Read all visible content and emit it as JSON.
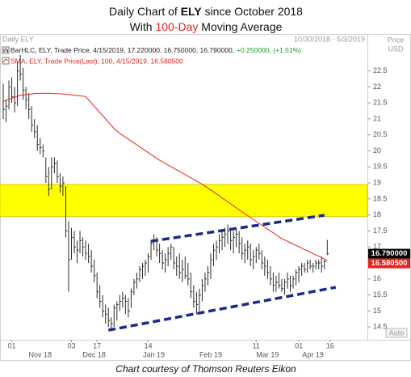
{
  "chart_data": {
    "type": "hlc",
    "title": [
      "Daily Chart of ",
      "ELY",
      " since October 2018"
    ],
    "subtitle": [
      "With ",
      "100-Day",
      " Moving Average"
    ],
    "header": "Daily ELY",
    "date_range": "10/30/2018 - 5/3/2019",
    "axis_label": [
      "Price",
      "USD"
    ],
    "caption": "Chart courtesy of Thomson Reuters Eikon",
    "auto_label": "Auto",
    "x": [
      "2018-10-29",
      "2018-10-30",
      "2018-10-31",
      "2018-11-01",
      "2018-11-02",
      "2018-11-05",
      "2018-11-06",
      "2018-11-07",
      "2018-11-08",
      "2018-11-09",
      "2018-11-12",
      "2018-11-13",
      "2018-11-14",
      "2018-11-15",
      "2018-11-16",
      "2018-11-19",
      "2018-11-20",
      "2018-11-21",
      "2018-11-23",
      "2018-11-26",
      "2018-11-27",
      "2018-11-28",
      "2018-11-29",
      "2018-11-30",
      "2018-12-03",
      "2018-12-04",
      "2018-12-06",
      "2018-12-07",
      "2018-12-10",
      "2018-12-11",
      "2018-12-12",
      "2018-12-13",
      "2018-12-14",
      "2018-12-17",
      "2018-12-18",
      "2018-12-19",
      "2018-12-20",
      "2018-12-21",
      "2018-12-24",
      "2018-12-26",
      "2018-12-27",
      "2018-12-28",
      "2018-12-31",
      "2019-01-02",
      "2019-01-03",
      "2019-01-04",
      "2019-01-07",
      "2019-01-08",
      "2019-01-09",
      "2019-01-10",
      "2019-01-11",
      "2019-01-14",
      "2019-01-15",
      "2019-01-16",
      "2019-01-17",
      "2019-01-18",
      "2019-01-22",
      "2019-01-23",
      "2019-01-24",
      "2019-01-25",
      "2019-01-28",
      "2019-01-29",
      "2019-01-30",
      "2019-01-31",
      "2019-02-01",
      "2019-02-04",
      "2019-02-05",
      "2019-02-06",
      "2019-02-07",
      "2019-02-08",
      "2019-02-11",
      "2019-02-12",
      "2019-02-13",
      "2019-02-14",
      "2019-02-15",
      "2019-02-19",
      "2019-02-20",
      "2019-02-21",
      "2019-02-22",
      "2019-02-25",
      "2019-02-26",
      "2019-02-27",
      "2019-02-28",
      "2019-03-01",
      "2019-03-04",
      "2019-03-05",
      "2019-03-06",
      "2019-03-07",
      "2019-03-08",
      "2019-03-11",
      "2019-03-12",
      "2019-03-13",
      "2019-03-14",
      "2019-03-15",
      "2019-03-18",
      "2019-03-19",
      "2019-03-20",
      "2019-03-21",
      "2019-03-22",
      "2019-03-25",
      "2019-03-26",
      "2019-03-27",
      "2019-03-28",
      "2019-03-29",
      "2019-04-01",
      "2019-04-02",
      "2019-04-03",
      "2019-04-04",
      "2019-04-05",
      "2019-04-08",
      "2019-04-09",
      "2019-04-10",
      "2019-04-11",
      "2019-04-12",
      "2019-04-15"
    ],
    "series": [
      {
        "name": "BarHLC, ELY, Trade Price, 4/15/2019, 17.220000, 16.750000, 16.790000,",
        "change": "+0.250000, (+1.51%)",
        "change_color": "#1f9a2a",
        "type": "hlc",
        "color": "#2a2a2a",
        "high": [
          22.1,
          21.6,
          22.2,
          22.3,
          22.0,
          22.8,
          23.0,
          22.6,
          22.0,
          21.8,
          21.4,
          21.0,
          20.8,
          20.4,
          20.2,
          19.8,
          19.5,
          19.8,
          19.8,
          19.7,
          19.3,
          19.2,
          18.9,
          17.8,
          17.6,
          17.5,
          17.2,
          17.5,
          17.3,
          17.2,
          17.1,
          16.9,
          16.6,
          16.2,
          15.8,
          15.5,
          15.2,
          15.1,
          14.8,
          15.2,
          15.3,
          15.5,
          15.6,
          15.5,
          15.4,
          15.7,
          16.0,
          16.2,
          16.4,
          16.5,
          16.6,
          16.8,
          17.2,
          17.4,
          17.3,
          17.1,
          16.9,
          16.8,
          17.0,
          17.1,
          17.0,
          16.7,
          16.8,
          16.6,
          16.7,
          16.5,
          16.2,
          15.8,
          15.6,
          15.7,
          16.0,
          16.2,
          16.4,
          16.8,
          17.1,
          17.2,
          17.4,
          17.5,
          17.6,
          17.7,
          17.6,
          17.5,
          17.6,
          17.5,
          17.3,
          17.1,
          17.2,
          17.1,
          16.9,
          17.0,
          17.1,
          16.9,
          16.7,
          16.6,
          16.4,
          16.2,
          16.1,
          16.2,
          16.0,
          16.0,
          16.2,
          16.1,
          16.1,
          16.3,
          16.4,
          16.5,
          16.5,
          16.6,
          16.6,
          16.5,
          16.6,
          16.6,
          16.7,
          16.6,
          17.22
        ],
        "low": [
          21.0,
          20.9,
          21.3,
          21.5,
          21.2,
          21.4,
          22.2,
          21.6,
          21.3,
          21.0,
          20.6,
          20.4,
          20.0,
          19.9,
          19.8,
          19.0,
          18.6,
          18.8,
          19.3,
          19.0,
          18.7,
          18.6,
          17.3,
          15.6,
          16.6,
          16.8,
          16.5,
          16.8,
          16.7,
          16.6,
          16.5,
          16.2,
          15.9,
          15.4,
          15.1,
          14.8,
          14.6,
          14.5,
          14.4,
          14.5,
          14.7,
          15.0,
          15.1,
          14.9,
          14.8,
          15.1,
          15.5,
          15.7,
          15.9,
          16.0,
          16.1,
          16.2,
          16.6,
          16.9,
          16.7,
          16.5,
          16.3,
          16.2,
          16.4,
          16.6,
          16.3,
          16.1,
          16.0,
          15.9,
          16.0,
          15.8,
          15.4,
          15.1,
          14.9,
          15.0,
          15.3,
          15.6,
          15.8,
          16.0,
          16.4,
          16.6,
          16.8,
          16.9,
          17.0,
          17.1,
          16.9,
          16.8,
          17.0,
          16.8,
          16.6,
          16.5,
          16.6,
          16.4,
          16.3,
          16.5,
          16.6,
          16.3,
          16.1,
          16.0,
          15.8,
          15.6,
          15.6,
          15.7,
          15.6,
          15.5,
          15.7,
          15.6,
          15.7,
          15.8,
          15.9,
          16.1,
          16.2,
          16.2,
          16.3,
          16.2,
          16.3,
          16.3,
          16.2,
          16.3,
          16.75
        ],
        "values": [
          21.3,
          21.4,
          22.0,
          21.7,
          21.5,
          22.5,
          22.4,
          21.9,
          21.6,
          21.3,
          20.8,
          20.6,
          20.2,
          20.1,
          20.0,
          19.2,
          18.8,
          19.5,
          19.6,
          19.2,
          18.9,
          19.0,
          17.5,
          16.6,
          17.3,
          17.0,
          16.9,
          17.2,
          17.0,
          16.8,
          16.7,
          16.4,
          16.1,
          15.6,
          15.3,
          15.0,
          14.9,
          14.7,
          14.6,
          15.1,
          15.2,
          15.3,
          15.4,
          15.3,
          15.0,
          15.6,
          15.9,
          16.0,
          16.3,
          16.4,
          16.5,
          16.7,
          17.1,
          17.2,
          16.9,
          16.8,
          16.5,
          16.6,
          16.8,
          17.0,
          16.5,
          16.4,
          16.2,
          16.3,
          16.1,
          16.0,
          15.6,
          15.3,
          15.2,
          15.5,
          15.8,
          16.0,
          16.2,
          16.6,
          16.9,
          17.0,
          17.2,
          17.3,
          17.4,
          17.5,
          17.2,
          17.3,
          17.4,
          17.1,
          16.8,
          16.9,
          17.0,
          16.6,
          16.7,
          16.9,
          16.8,
          16.5,
          16.4,
          16.2,
          16.0,
          15.8,
          15.9,
          15.8,
          15.7,
          15.9,
          16.0,
          15.8,
          16.0,
          16.2,
          16.3,
          16.4,
          16.3,
          16.5,
          16.4,
          16.4,
          16.5,
          16.5,
          16.4,
          16.54,
          16.79
        ]
      },
      {
        "name": "SMA, ELY, Trade Price(Last), 100, 4/15/2019, 16.580500",
        "type": "line",
        "color": "#e8231b",
        "values": [
          21.55,
          21.58,
          21.62,
          21.65,
          21.68,
          21.71,
          21.74,
          21.75,
          21.76,
          21.77,
          21.78,
          21.79,
          21.8,
          21.8,
          21.8,
          21.8,
          21.8,
          21.8,
          21.79,
          21.79,
          21.78,
          21.78,
          21.77,
          21.76,
          21.75,
          21.74,
          21.73,
          21.72,
          21.71,
          21.7,
          21.6,
          21.5,
          21.4,
          21.3,
          21.2,
          21.1,
          21.0,
          20.9,
          20.8,
          20.7,
          20.62,
          20.55,
          20.49,
          20.43,
          20.37,
          20.31,
          20.25,
          20.19,
          20.13,
          20.07,
          20.01,
          19.95,
          19.89,
          19.83,
          19.77,
          19.71,
          19.66,
          19.61,
          19.56,
          19.51,
          19.46,
          19.41,
          19.36,
          19.31,
          19.26,
          19.21,
          19.16,
          19.11,
          19.06,
          19.01,
          18.96,
          18.9,
          18.84,
          18.78,
          18.72,
          18.66,
          18.6,
          18.53,
          18.47,
          18.41,
          18.35,
          18.29,
          18.22,
          18.16,
          18.1,
          18.04,
          17.98,
          17.92,
          17.86,
          17.8,
          17.74,
          17.68,
          17.62,
          17.56,
          17.5,
          17.44,
          17.38,
          17.32,
          17.26,
          17.22,
          17.18,
          17.13,
          17.09,
          17.05,
          17.01,
          16.96,
          16.92,
          16.88,
          16.84,
          16.79,
          16.75,
          16.71,
          16.67,
          16.62,
          16.5805
        ]
      }
    ],
    "ylim": [
      14.1,
      23.3
    ],
    "yticks": [
      14.5,
      15,
      15.5,
      16,
      16.5,
      17,
      17.5,
      18,
      18.5,
      19,
      19.5,
      20,
      20.5,
      21,
      21.5,
      22,
      22.5
    ],
    "xticks": [
      {
        "value": "2018-11-01",
        "label": "01"
      },
      {
        "value": "2018-12-03",
        "label": "03"
      },
      {
        "value": "2018-12-17",
        "label": "17"
      },
      {
        "value": "2019-01-14",
        "label": "14"
      },
      {
        "value": "2019-03-11",
        "label": "11"
      },
      {
        "value": "2019-04-01",
        "label": "01"
      },
      {
        "value": "2019-04-16",
        "label": "16"
      }
    ],
    "xmonths": [
      {
        "value": "2018-11-15",
        "label": "Nov 18"
      },
      {
        "value": "2018-12-14",
        "label": "Dec 18"
      },
      {
        "value": "2019-01-16",
        "label": "Jan 19"
      },
      {
        "value": "2019-02-14",
        "label": "Feb 19"
      },
      {
        "value": "2019-03-15",
        "label": "Mar 19"
      },
      {
        "value": "2019-04-08",
        "label": "Apr 19"
      }
    ],
    "band": {
      "y": [
        17.95,
        18.95
      ],
      "color": "#ffff00"
    },
    "trendlines": [
      {
        "x": [
          "2019-01-15",
          "2019-04-12"
        ],
        "y": [
          17.18,
          17.99
        ],
        "color": "#1c2a8c"
      },
      {
        "x": [
          "2018-12-21",
          "2019-04-18"
        ],
        "y": [
          14.4,
          15.74
        ],
        "color": "#1c2a8c"
      }
    ],
    "price_tags": [
      {
        "value": 16.79,
        "label": "16.790000",
        "color": "#000000"
      },
      {
        "value": 16.5805,
        "label": "16.580500",
        "color": "#e8231b"
      }
    ],
    "grid": false
  }
}
